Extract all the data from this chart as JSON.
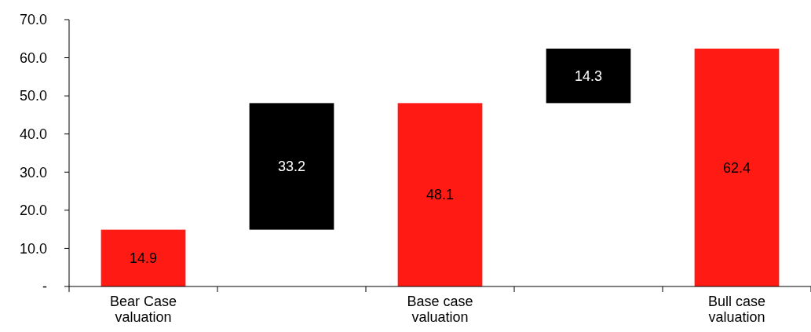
{
  "chart_data": {
    "type": "bar",
    "categories": [
      "Bear Case valuation",
      null,
      "Base case valuation",
      null,
      "Bull case valuation"
    ],
    "values": [
      14.9,
      33.2,
      48.1,
      14.3,
      62.4
    ],
    "base": [
      0,
      14.9,
      0,
      48.1,
      0
    ],
    "colors": [
      "#ff1a14",
      "#000000",
      "#ff1a14",
      "#000000",
      "#ff1a14"
    ],
    "ylim": [
      0,
      70
    ],
    "yticks": [
      {
        "value": 0,
        "label": "-"
      },
      {
        "value": 10,
        "label": "10.0"
      },
      {
        "value": 20,
        "label": "20.0"
      },
      {
        "value": 30,
        "label": "30.0"
      },
      {
        "value": 40,
        "label": "40.0"
      },
      {
        "value": 50,
        "label": "50.0"
      },
      {
        "value": 60,
        "label": "60.0"
      },
      {
        "value": 70,
        "label": "70.0"
      }
    ],
    "data_labels": true
  }
}
